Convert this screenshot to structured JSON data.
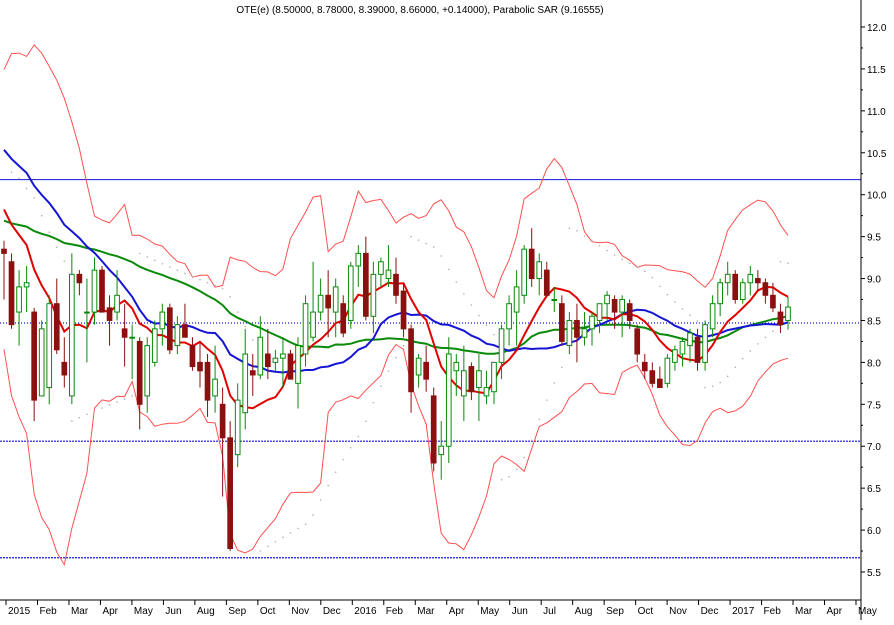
{
  "chart_data": {
    "type": "candlestick",
    "title": "OTE(e) (8.50000, 8.78000, 8.39000, 8.66000, +0.14000), Parabolic SAR (9.16555)",
    "last": {
      "open": 8.5,
      "high": 8.78,
      "low": 8.39,
      "close": 8.66,
      "change": 0.14
    },
    "sar_last": 9.16555,
    "ylim": [
      5.5,
      12.0
    ],
    "y_ticks": [
      "5.5",
      "6.0",
      "6.5",
      "7.0",
      "7.5",
      "8.0",
      "8.5",
      "9.0",
      "9.5",
      "10.0",
      "10.5",
      "11.0",
      "11.5",
      "12.0"
    ],
    "x_tick_labels": [
      "2015",
      "Feb",
      "Mar",
      "Apr",
      "May",
      "Jun",
      "Aug",
      "Sep",
      "Oct",
      "Nov",
      "Dec",
      "2016",
      "Feb",
      "Mar",
      "Apr",
      "May",
      "Jun",
      "Jul",
      "Aug",
      "Sep",
      "Oct",
      "Nov",
      "Dec",
      "2017",
      "Feb",
      "Mar",
      "Apr",
      "May"
    ],
    "horizontal_lines": [
      {
        "value": 10.18,
        "style": "solid",
        "color": "#1515d6"
      },
      {
        "value": 8.47,
        "style": "dotted",
        "color": "#1515d6"
      },
      {
        "value": 7.06,
        "style": "dashed",
        "color": "#1515d6"
      },
      {
        "value": 5.67,
        "style": "dashed",
        "color": "#1515d6"
      }
    ],
    "colors": {
      "up": "#0a8a0a",
      "down": "#8b1010",
      "ma_fast": "#e00000",
      "ma_mid": "#1515d6",
      "ma_slow": "#0a8a0a",
      "bands": "#ff5050",
      "sar": "#b0b0b0"
    },
    "candles": [
      [
        9.35,
        9.45,
        8.75,
        9.3
      ],
      [
        9.2,
        9.3,
        8.4,
        8.45
      ],
      [
        8.6,
        9.1,
        8.2,
        8.9
      ],
      [
        8.9,
        9.15,
        8.6,
        8.95
      ],
      [
        8.6,
        8.65,
        7.3,
        7.55
      ],
      [
        7.6,
        8.5,
        7.6,
        8.4
      ],
      [
        7.7,
        8.8,
        7.5,
        8.7
      ],
      [
        8.7,
        9.0,
        8.1,
        8.15
      ],
      [
        8.0,
        8.3,
        7.7,
        7.85
      ],
      [
        7.6,
        9.3,
        7.5,
        9.05
      ],
      [
        9.05,
        9.1,
        8.8,
        8.95
      ],
      [
        8.6,
        9.0,
        8.0,
        8.6
      ],
      [
        8.6,
        9.25,
        8.45,
        9.1
      ],
      [
        9.1,
        9.15,
        8.6,
        8.6
      ],
      [
        8.65,
        8.8,
        8.2,
        8.5
      ],
      [
        8.6,
        9.1,
        8.5,
        8.8
      ],
      [
        8.4,
        8.7,
        7.95,
        8.3
      ],
      [
        8.3,
        8.45,
        7.8,
        8.3
      ],
      [
        8.25,
        8.3,
        7.2,
        7.5
      ],
      [
        7.6,
        8.3,
        7.4,
        8.2
      ],
      [
        8.0,
        8.5,
        7.95,
        8.4
      ],
      [
        8.4,
        8.7,
        8.2,
        8.6
      ],
      [
        8.65,
        8.7,
        8.1,
        8.15
      ],
      [
        8.2,
        8.55,
        8.1,
        8.45
      ],
      [
        8.45,
        8.7,
        8.3,
        8.3
      ],
      [
        8.2,
        8.3,
        7.9,
        7.95
      ],
      [
        8.0,
        8.25,
        7.7,
        7.9
      ],
      [
        8.0,
        8.1,
        7.35,
        7.55
      ],
      [
        7.6,
        8.2,
        7.4,
        7.8
      ],
      [
        7.5,
        7.7,
        6.4,
        7.1
      ],
      [
        7.1,
        7.3,
        5.75,
        5.78
      ],
      [
        6.9,
        7.75,
        6.75,
        7.55
      ],
      [
        7.4,
        8.4,
        7.2,
        8.1
      ],
      [
        7.9,
        8.1,
        7.6,
        7.85
      ],
      [
        7.85,
        8.55,
        7.8,
        8.3
      ],
      [
        8.1,
        8.4,
        7.8,
        7.95
      ],
      [
        8.0,
        8.15,
        7.9,
        8.05
      ],
      [
        8.05,
        8.3,
        7.7,
        8.1
      ],
      [
        8.1,
        8.15,
        7.8,
        7.8
      ],
      [
        7.75,
        8.3,
        7.45,
        8.2
      ],
      [
        8.1,
        8.8,
        7.95,
        8.7
      ],
      [
        8.3,
        9.2,
        8.25,
        8.6
      ],
      [
        8.6,
        9.0,
        8.5,
        8.8
      ],
      [
        8.8,
        9.1,
        8.3,
        8.65
      ],
      [
        8.6,
        9.0,
        8.3,
        8.9
      ],
      [
        8.7,
        8.8,
        8.3,
        8.35
      ],
      [
        8.5,
        9.2,
        8.4,
        9.15
      ],
      [
        9.15,
        9.4,
        8.9,
        9.3
      ],
      [
        9.3,
        9.5,
        8.5,
        8.55
      ],
      [
        8.55,
        9.2,
        8.35,
        9.05
      ],
      [
        9.05,
        9.25,
        8.9,
        9.2
      ],
      [
        9.0,
        9.4,
        8.9,
        9.1
      ],
      [
        9.05,
        9.25,
        8.7,
        8.8
      ],
      [
        8.85,
        8.95,
        8.3,
        8.4
      ],
      [
        8.4,
        8.45,
        7.4,
        7.65
      ],
      [
        7.85,
        8.1,
        7.7,
        8.05
      ],
      [
        8.0,
        8.2,
        7.65,
        7.8
      ],
      [
        7.6,
        7.7,
        6.7,
        6.8
      ],
      [
        6.9,
        7.3,
        6.6,
        7.0
      ],
      [
        7.0,
        8.3,
        6.8,
        8.1
      ],
      [
        7.9,
        8.1,
        7.6,
        8.0
      ],
      [
        7.6,
        8.2,
        7.3,
        7.9
      ],
      [
        7.95,
        8.0,
        7.55,
        7.65
      ],
      [
        7.7,
        8.1,
        7.3,
        7.9
      ],
      [
        7.6,
        7.9,
        7.5,
        7.7
      ],
      [
        7.65,
        8.0,
        7.5,
        8.0
      ],
      [
        8.0,
        8.45,
        7.8,
        8.4
      ],
      [
        8.4,
        8.8,
        8.2,
        8.7
      ],
      [
        8.6,
        9.1,
        8.2,
        8.9
      ],
      [
        8.8,
        9.4,
        8.7,
        9.35
      ],
      [
        9.35,
        9.6,
        8.9,
        9.0
      ],
      [
        9.0,
        9.3,
        8.8,
        9.2
      ],
      [
        9.1,
        9.2,
        8.8,
        8.8
      ],
      [
        8.75,
        8.9,
        8.6,
        8.75
      ],
      [
        8.7,
        8.8,
        8.2,
        8.25
      ],
      [
        8.2,
        8.6,
        8.1,
        8.5
      ],
      [
        8.5,
        8.7,
        8.0,
        8.3
      ],
      [
        8.3,
        8.6,
        8.2,
        8.4
      ],
      [
        8.4,
        8.6,
        8.2,
        8.55
      ],
      [
        8.5,
        8.7,
        8.35,
        8.7
      ],
      [
        8.7,
        8.85,
        8.5,
        8.8
      ],
      [
        8.75,
        8.8,
        8.4,
        8.6
      ],
      [
        8.6,
        8.8,
        8.3,
        8.75
      ],
      [
        8.7,
        8.75,
        8.4,
        8.5
      ],
      [
        8.4,
        8.45,
        8.0,
        8.1
      ],
      [
        8.0,
        8.1,
        7.8,
        7.9
      ],
      [
        7.9,
        8.0,
        7.7,
        7.75
      ],
      [
        7.8,
        7.95,
        7.7,
        7.7
      ],
      [
        7.75,
        8.1,
        7.7,
        8.05
      ],
      [
        8.0,
        8.2,
        7.9,
        8.15
      ],
      [
        8.1,
        8.3,
        7.95,
        8.25
      ],
      [
        8.2,
        8.4,
        8.0,
        8.35
      ],
      [
        8.3,
        8.4,
        7.9,
        8.0
      ],
      [
        8.0,
        8.5,
        7.9,
        8.45
      ],
      [
        8.4,
        8.8,
        8.3,
        8.7
      ],
      [
        8.7,
        9.0,
        8.55,
        8.95
      ],
      [
        8.95,
        9.2,
        8.8,
        9.05
      ],
      [
        9.05,
        9.1,
        8.7,
        8.75
      ],
      [
        8.75,
        9.0,
        8.7,
        8.95
      ],
      [
        8.95,
        9.15,
        8.8,
        9.05
      ],
      [
        9.0,
        9.1,
        8.85,
        8.95
      ],
      [
        8.95,
        9.0,
        8.7,
        8.8
      ],
      [
        8.8,
        8.95,
        8.6,
        8.65
      ],
      [
        8.6,
        8.7,
        8.35,
        8.45
      ],
      [
        8.5,
        8.78,
        8.39,
        8.66
      ]
    ]
  }
}
